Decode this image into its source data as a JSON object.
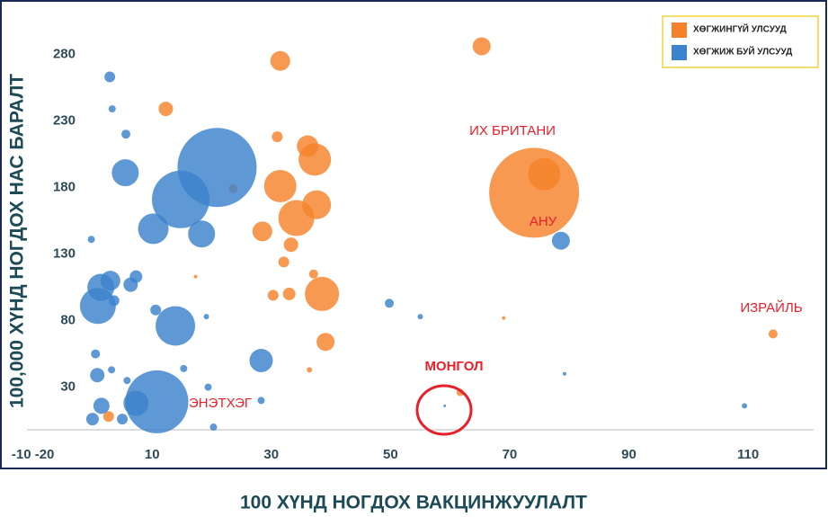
{
  "chart_data": {
    "type": "scatter",
    "x_label": "100 ХҮНД НОГДОХ ВАКЦИНЖУУЛАЛТ",
    "y_label": "100,000 ХҮНД НОГДОХ НАС БАРАЛТ",
    "xlim": [
      -11,
      121
    ],
    "ylim": [
      -2,
      314
    ],
    "xticks": [
      {
        "value": -10,
        "label": "-10 -20"
      },
      10,
      30,
      50,
      70,
      90,
      110
    ],
    "yticks": [
      30,
      80,
      130,
      180,
      230,
      280
    ],
    "legend": "upper right",
    "annotations": [
      "ИХ БРИТАНИ",
      "АНУ",
      "ИЗРАЙЛЬ",
      "МОНГОЛ",
      "ЭНЭТХЭГ"
    ],
    "series": [
      {
        "name": "ХӨГЖИНГҮЙ УЛСУУД",
        "color": "#f5822b",
        "x": [
          65.3,
          31.5,
          12.3,
          74.1,
          75.8,
          36.1,
          37.3,
          31.5,
          37.6,
          34.2,
          28.5,
          33.3,
          32.1,
          30.3,
          33,
          38.5,
          37.1,
          39.1,
          23.6,
          31,
          114.2,
          2.7,
          36.4,
          61.7,
          69,
          17.3
        ],
        "y": [
          286,
          275,
          239,
          176,
          190,
          211,
          201,
          181,
          167,
          157,
          147,
          137,
          124,
          99,
          100,
          100,
          115,
          64,
          179,
          218,
          70,
          8,
          43,
          26,
          82,
          113
        ],
        "sizes": [
          10,
          11,
          8,
          50,
          18,
          12,
          18,
          18,
          16,
          20,
          11,
          8,
          6,
          6,
          7,
          19,
          5,
          10,
          5,
          6,
          5,
          6,
          3,
          4,
          2,
          2
        ]
      },
      {
        "name": "ХӨГЖИЖ БУЙ УЛСУУД",
        "color": "#3c82cc",
        "x": [
          2.9,
          3.3,
          5.6,
          20.9,
          14.8,
          5.5,
          10.2,
          18.3,
          -0.2,
          3,
          7.3,
          6.4,
          0.9,
          1.4,
          3.6,
          13.9,
          10.6,
          19.1,
          28.3,
          10.8,
          7.3,
          0.8,
          0.5,
          3.2,
          5.8,
          1.5,
          0,
          5,
          19.4,
          15.3,
          28.3,
          20.3,
          49.8,
          55,
          78.6,
          79.2,
          109.4,
          59.1
        ],
        "y": [
          263,
          239,
          220,
          195,
          171,
          191,
          149,
          145,
          141,
          110,
          113,
          107,
          91,
          105,
          95,
          76,
          88,
          83,
          50,
          19,
          18,
          39,
          55,
          43,
          35,
          16,
          6,
          6,
          30,
          44,
          20,
          0,
          93,
          83,
          140,
          40,
          16,
          16
        ],
        "sizes": [
          6,
          4,
          5,
          44,
          32,
          15,
          17,
          15,
          4,
          11,
          7,
          8,
          20,
          15,
          6,
          22,
          6,
          3,
          13,
          35,
          14,
          8,
          5,
          4,
          4,
          9,
          7,
          6,
          4,
          4,
          4,
          4,
          5,
          3,
          10,
          2,
          3,
          1.5
        ]
      }
    ]
  }
}
